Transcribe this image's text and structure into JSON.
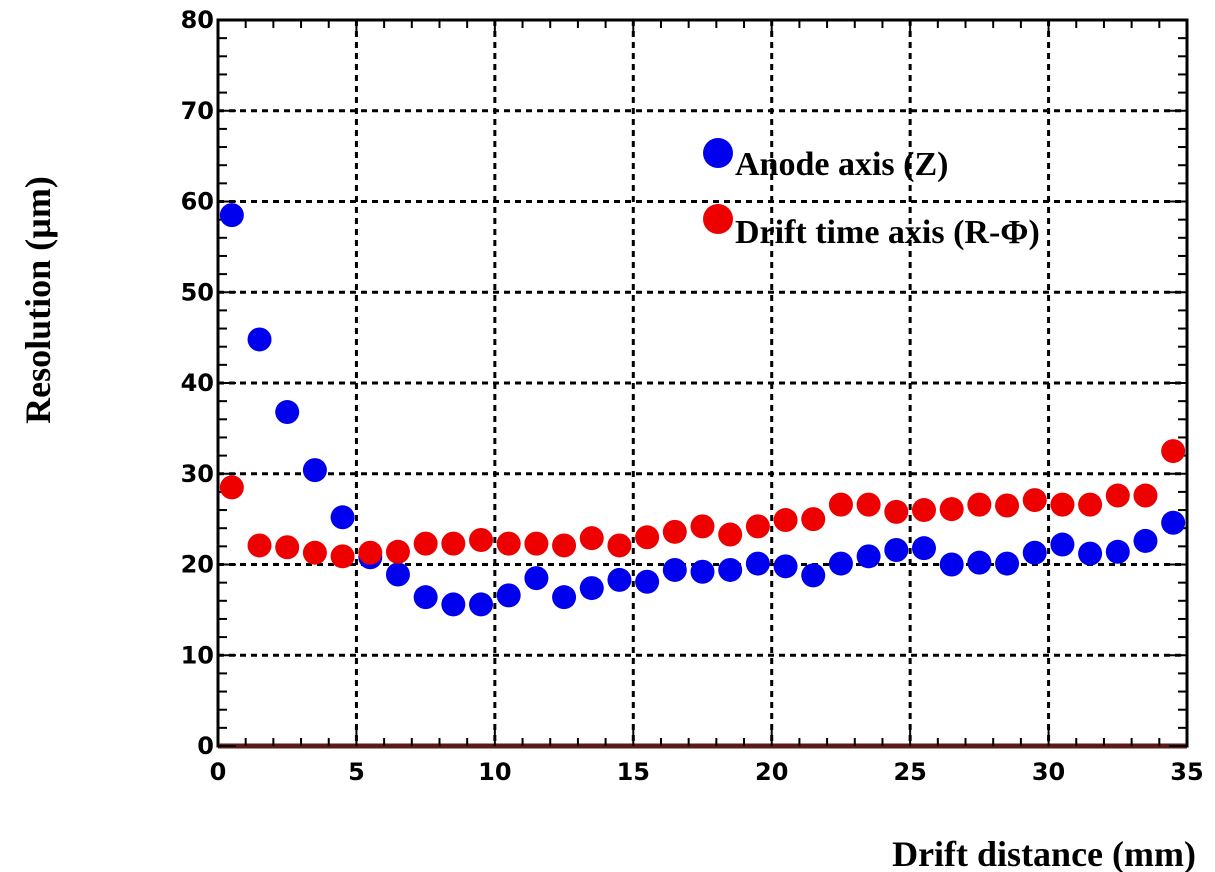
{
  "chart_data": {
    "type": "scatter",
    "title": "",
    "xlabel": "Drift distance (mm)",
    "ylabel": "Resolution (µm)",
    "xlim": [
      0,
      35
    ],
    "ylim": [
      0,
      80
    ],
    "xticks": [
      "0",
      "5",
      "10",
      "15",
      "20",
      "25",
      "30",
      "35"
    ],
    "yticks": [
      "0",
      "10",
      "20",
      "30",
      "40",
      "50",
      "60",
      "70",
      "80"
    ],
    "grid": true,
    "legend_position": "top-right",
    "series": [
      {
        "name": "Anode axis (Z)",
        "color": "#0000ee",
        "points": [
          [
            0.5,
            58.5
          ],
          [
            1.5,
            44.8
          ],
          [
            2.5,
            36.8
          ],
          [
            3.5,
            30.4
          ],
          [
            4.5,
            25.2
          ],
          [
            5.5,
            20.8
          ],
          [
            6.5,
            18.9
          ],
          [
            7.5,
            16.4
          ],
          [
            8.5,
            15.6
          ],
          [
            9.5,
            15.6
          ],
          [
            10.5,
            16.6
          ],
          [
            11.5,
            18.5
          ],
          [
            12.5,
            16.4
          ],
          [
            13.5,
            17.4
          ],
          [
            14.5,
            18.3
          ],
          [
            15.5,
            18.1
          ],
          [
            16.5,
            19.4
          ],
          [
            17.5,
            19.2
          ],
          [
            18.5,
            19.4
          ],
          [
            19.5,
            20.1
          ],
          [
            20.5,
            19.8
          ],
          [
            21.5,
            18.8
          ],
          [
            22.5,
            20.1
          ],
          [
            23.5,
            20.9
          ],
          [
            24.5,
            21.6
          ],
          [
            25.5,
            21.8
          ],
          [
            26.5,
            20.0
          ],
          [
            27.5,
            20.2
          ],
          [
            28.5,
            20.1
          ],
          [
            29.5,
            21.3
          ],
          [
            30.5,
            22.2
          ],
          [
            31.5,
            21.2
          ],
          [
            32.5,
            21.4
          ],
          [
            33.5,
            22.6
          ],
          [
            34.5,
            24.6
          ]
        ]
      },
      {
        "name": "Drift time axis (R-Φ)",
        "color": "#ee0000",
        "points": [
          [
            0.5,
            28.5
          ],
          [
            1.5,
            22.1
          ],
          [
            2.5,
            21.9
          ],
          [
            3.5,
            21.3
          ],
          [
            4.5,
            20.9
          ],
          [
            5.5,
            21.3
          ],
          [
            6.5,
            21.4
          ],
          [
            7.5,
            22.3
          ],
          [
            8.5,
            22.3
          ],
          [
            9.5,
            22.7
          ],
          [
            10.5,
            22.3
          ],
          [
            11.5,
            22.3
          ],
          [
            12.5,
            22.1
          ],
          [
            13.5,
            22.9
          ],
          [
            14.5,
            22.1
          ],
          [
            15.5,
            23.0
          ],
          [
            16.5,
            23.6
          ],
          [
            17.5,
            24.2
          ],
          [
            18.5,
            23.3
          ],
          [
            19.5,
            24.2
          ],
          [
            20.5,
            24.9
          ],
          [
            21.5,
            25.0
          ],
          [
            22.5,
            26.6
          ],
          [
            23.5,
            26.6
          ],
          [
            24.5,
            25.8
          ],
          [
            25.5,
            26.0
          ],
          [
            26.5,
            26.1
          ],
          [
            27.5,
            26.6
          ],
          [
            28.5,
            26.5
          ],
          [
            29.5,
            27.1
          ],
          [
            30.5,
            26.6
          ],
          [
            31.5,
            26.6
          ],
          [
            32.5,
            27.6
          ],
          [
            33.5,
            27.6
          ],
          [
            34.5,
            32.5
          ]
        ]
      }
    ]
  }
}
